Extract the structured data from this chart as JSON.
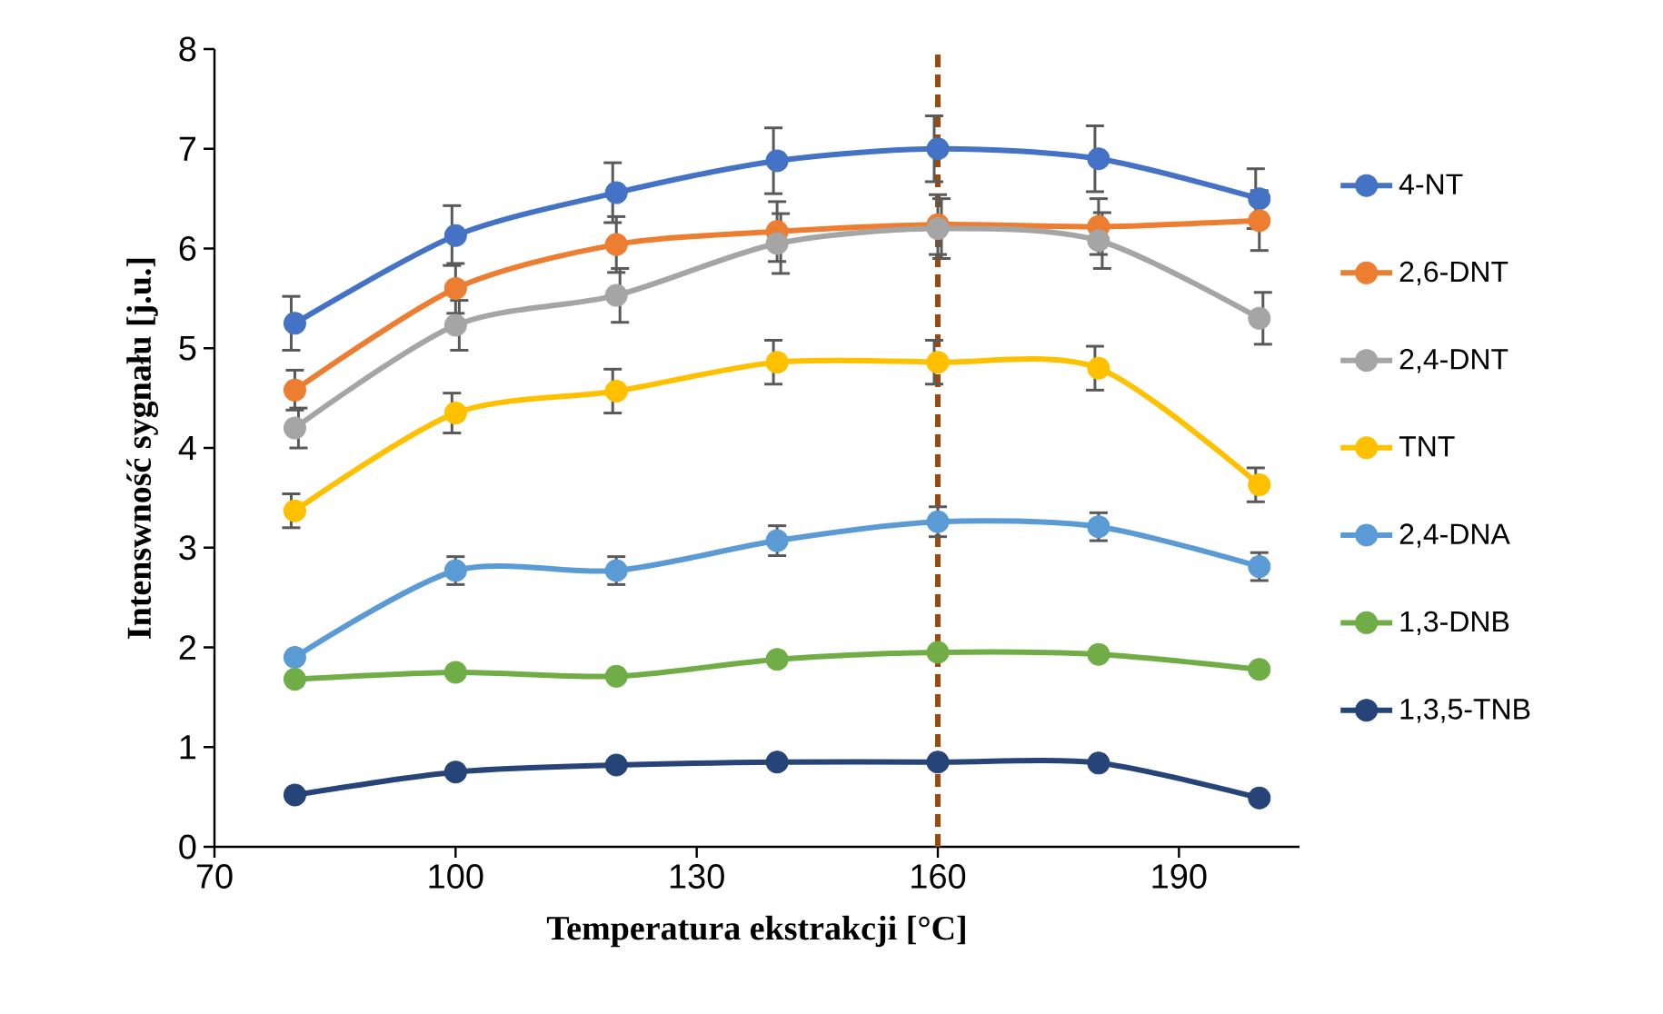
{
  "chart_data": {
    "type": "line",
    "xlabel": "Temperatura ekstrakcji [°C]",
    "ylabel": "Intenswność sygnału [j.u.]",
    "x": [
      80,
      100,
      120,
      140,
      160,
      180,
      200
    ],
    "xlim": [
      70,
      205
    ],
    "xticks": [
      70,
      100,
      130,
      160,
      190
    ],
    "ylim": [
      0,
      8
    ],
    "yticks": [
      0,
      1,
      2,
      3,
      4,
      5,
      6,
      7,
      8
    ],
    "grid": false,
    "legend": "right",
    "marker": "circle",
    "line_style": "solid",
    "series": [
      {
        "name": "4-NT",
        "color": "#4472c4",
        "values": [
          5.25,
          6.13,
          6.56,
          6.88,
          7.0,
          6.9,
          6.5
        ],
        "errors": [
          0.27,
          0.3,
          0.3,
          0.33,
          0.33,
          0.33,
          0.3
        ]
      },
      {
        "name": "2,6-DNT",
        "color": "#ed7d31",
        "values": [
          4.58,
          5.6,
          6.04,
          6.17,
          6.24,
          6.22,
          6.28
        ],
        "errors": [
          0.2,
          0.25,
          0.28,
          0.3,
          0.3,
          0.28,
          0.3
        ]
      },
      {
        "name": "2,4-DNT",
        "color": "#a5a5a5",
        "values": [
          4.2,
          5.23,
          5.53,
          6.05,
          6.2,
          6.08,
          5.3
        ],
        "errors": [
          0.2,
          0.25,
          0.27,
          0.3,
          0.3,
          0.28,
          0.26
        ]
      },
      {
        "name": "TNT",
        "color": "#ffc000",
        "values": [
          3.37,
          4.35,
          4.57,
          4.86,
          4.86,
          4.8,
          3.63
        ],
        "errors": [
          0.17,
          0.2,
          0.22,
          0.22,
          0.22,
          0.22,
          0.17
        ]
      },
      {
        "name": "2,4-DNA",
        "color": "#5b9bd5",
        "values": [
          1.9,
          2.77,
          2.77,
          3.07,
          3.26,
          3.21,
          2.81
        ],
        "errors": [
          null,
          0.14,
          0.14,
          0.15,
          0.15,
          0.14,
          0.14
        ]
      },
      {
        "name": "1,3-DNB",
        "color": "#70ad47",
        "values": [
          1.68,
          1.75,
          1.71,
          1.88,
          1.95,
          1.93,
          1.78
        ]
      },
      {
        "name": "1,3,5-TNB",
        "color": "#264478",
        "values": [
          0.52,
          0.75,
          0.82,
          0.85,
          0.85,
          0.84,
          0.49
        ]
      }
    ],
    "ref_lines": [
      {
        "axis": "x",
        "value": 160,
        "color": "#9e480e",
        "line_style": "dashed"
      }
    ]
  }
}
